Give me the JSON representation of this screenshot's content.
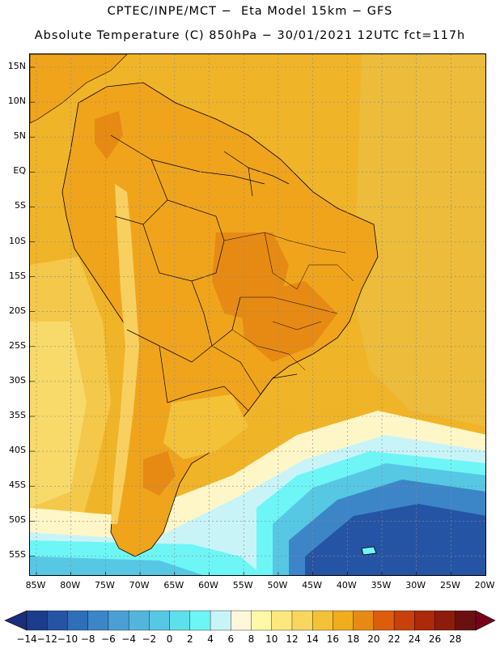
{
  "header": {
    "line1": "CPTEC/INPE/MCT −  Eta Model 15km − GFS",
    "line2": "Absolute Temperature (C) 850hPa − 30/01/2021 12UTC fct=117h"
  },
  "map": {
    "lat_labels": [
      "15N",
      "10N",
      "5N",
      "EQ",
      "5S",
      "10S",
      "15S",
      "20S",
      "25S",
      "30S",
      "35S",
      "40S",
      "45S",
      "50S",
      "55S"
    ],
    "lon_labels": [
      "85W",
      "80W",
      "75W",
      "70W",
      "65W",
      "60W",
      "55W",
      "50W",
      "45W",
      "40W",
      "35W",
      "30W",
      "25W",
      "20W"
    ]
  },
  "colorbar": {
    "labels": [
      "-14",
      "-12",
      "-10",
      "-8",
      "-6",
      "-4",
      "-2",
      "0",
      "2",
      "4",
      "6",
      "8",
      "10",
      "12",
      "14",
      "16",
      "18",
      "20",
      "22",
      "24",
      "26",
      "28"
    ],
    "colors": [
      "#1c3c8c",
      "#2554a4",
      "#2f6eb8",
      "#3c86c8",
      "#4aa0d4",
      "#52b6dc",
      "#56c8e4",
      "#5ee0ec",
      "#6ef6f6",
      "#c8f4f8",
      "#fff6dc",
      "#fff8a8",
      "#fde87e",
      "#f9d660",
      "#f4c238",
      "#f0ad1c",
      "#e68a14",
      "#dc5e0c",
      "#c8400a",
      "#ae280a",
      "#8c1c0c",
      "#6a1010"
    ],
    "under_color": "#1c2d7a",
    "over_color": "#78001a"
  }
}
